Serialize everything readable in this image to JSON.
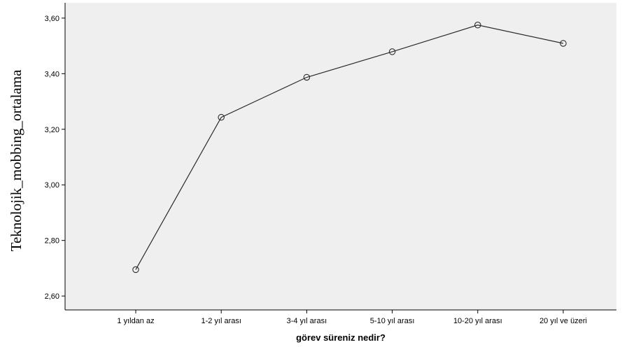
{
  "chart_data": {
    "type": "line",
    "title": "",
    "xlabel": "görev süreniz nedir?",
    "ylabel": "Teknolojik_mobbing_ortalama",
    "categories": [
      "1 yıldan az",
      "1-2 yıl arası",
      "3-4 yıl arası",
      "5-10 yıl arası",
      "10-20 yıl arası",
      "20 yıl ve üzeri"
    ],
    "series": [
      {
        "values": [
          2.695,
          3.243,
          3.387,
          3.479,
          3.575,
          3.509
        ]
      }
    ],
    "ylim": [
      2.55,
      3.655
    ],
    "yticks": [
      2.6,
      2.8,
      3.0,
      3.2,
      3.4,
      3.6
    ],
    "ytick_labels": [
      "2,60",
      "2,80",
      "3,00",
      "3,20",
      "3,40",
      "3,60"
    ],
    "grid": false,
    "legend": "none",
    "colors": {
      "plot_background": "#efefef",
      "line": "#2b2b2b",
      "marker": "#2b2b2b"
    }
  }
}
